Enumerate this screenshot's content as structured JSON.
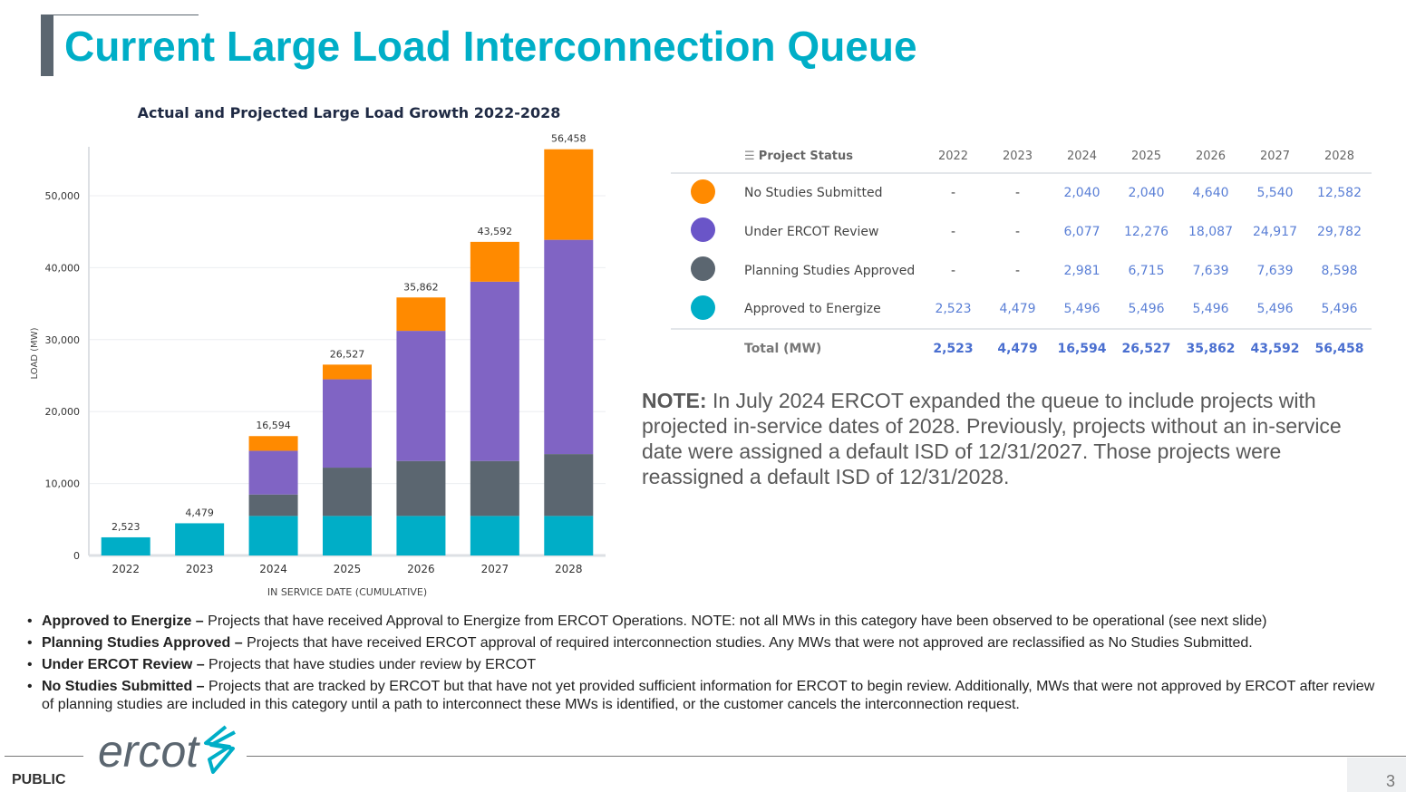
{
  "title": "Current Large Load Interconnection Queue",
  "chart_data": {
    "type": "bar",
    "stacked": true,
    "title": "Actual and Projected Large Load Growth 2022-2028",
    "xlabel": "IN SERVICE DATE (CUMULATIVE)",
    "ylabel": "LOAD (MW)",
    "ylim": [
      0,
      57000
    ],
    "yticks": [
      0,
      10000,
      20000,
      30000,
      40000,
      50000
    ],
    "ytick_labels": [
      "0",
      "10,000",
      "20,000",
      "30,000",
      "40,000",
      "50,000"
    ],
    "categories": [
      "2022",
      "2023",
      "2024",
      "2025",
      "2026",
      "2027",
      "2028"
    ],
    "series": [
      {
        "name": "Approved to Energize",
        "color": "#00aec7",
        "values": [
          2523,
          4479,
          5496,
          5496,
          5496,
          5496,
          5496
        ]
      },
      {
        "name": "Planning Studies Approved",
        "color": "#5b6670",
        "values": [
          0,
          0,
          2981,
          6715,
          7639,
          7639,
          8598
        ]
      },
      {
        "name": "Under ERCOT Review",
        "color": "#8064c4",
        "values": [
          0,
          0,
          6077,
          12276,
          18087,
          24917,
          29782
        ]
      },
      {
        "name": "No Studies Submitted",
        "color": "#ff8a00",
        "values": [
          0,
          0,
          2040,
          2040,
          4640,
          5540,
          12582
        ]
      }
    ],
    "totals": [
      "2,523",
      "4,479",
      "16,594",
      "26,527",
      "35,862",
      "43,592",
      "56,458"
    ],
    "grid": true
  },
  "table": {
    "header": "Project Status",
    "years": [
      "2022",
      "2023",
      "2024",
      "2025",
      "2026",
      "2027",
      "2028"
    ],
    "rows": [
      {
        "label": "No Studies Submitted",
        "color": "#ff8a00",
        "values": [
          "-",
          "-",
          "2,040",
          "2,040",
          "4,640",
          "5,540",
          "12,582"
        ]
      },
      {
        "label": "Under ERCOT Review",
        "color": "#6a55c8",
        "values": [
          "-",
          "-",
          "6,077",
          "12,276",
          "18,087",
          "24,917",
          "29,782"
        ]
      },
      {
        "label": "Planning Studies Approved",
        "color": "#5b6670",
        "values": [
          "-",
          "-",
          "2,981",
          "6,715",
          "7,639",
          "7,639",
          "8,598"
        ]
      },
      {
        "label": "Approved to Energize",
        "color": "#00aec7",
        "values": [
          "2,523",
          "4,479",
          "5,496",
          "5,496",
          "5,496",
          "5,496",
          "5,496"
        ]
      }
    ],
    "total_label": "Total (MW)",
    "totals": [
      "2,523",
      "4,479",
      "16,594",
      "26,527",
      "35,862",
      "43,592",
      "56,458"
    ]
  },
  "note": {
    "label": "NOTE:",
    "text": " In July 2024 ERCOT expanded the queue to include projects with projected in-service dates of 2028. Previously, projects without an in-service date were assigned a default ISD of 12/31/2027. Those projects were reassigned a default ISD of 12/31/2028."
  },
  "bullets": [
    {
      "term": "Approved to Energize –",
      "text": " Projects that have received Approval to Energize from ERCOT Operations. NOTE: not all MWs in this category have been observed to be operational (see next slide)"
    },
    {
      "term": "Planning Studies Approved –",
      "text": " Projects that have received ERCOT approval of required interconnection studies. Any MWs that were not approved are reclassified as No Studies Submitted."
    },
    {
      "term": "Under ERCOT Review –",
      "text": " Projects that have studies under review by ERCOT"
    },
    {
      "term": "No Studies Submitted –",
      "text": " Projects that are tracked by ERCOT but that have not yet provided sufficient information for ERCOT to begin review. Additionally, MWs that were not approved by ERCOT after review of planning studies are included in this category until a path to interconnect these MWs is identified, or the customer cancels the interconnection request."
    }
  ],
  "footer": {
    "logo": "ercot",
    "classification": "PUBLIC",
    "page": "3"
  }
}
